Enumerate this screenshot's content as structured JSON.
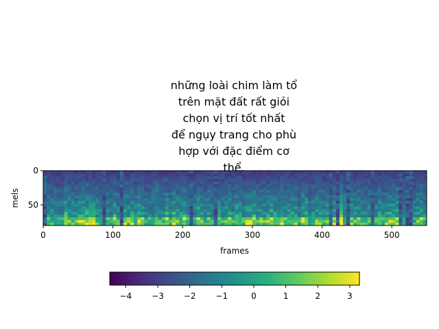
{
  "chart_data": [
    {
      "type": "heatmap",
      "title_lines": [
        "những loài chim làm tổ",
        "trên mặt đất rất giỏi",
        "chọn vị trí tốt nhất",
        "để ngụy trang cho phù",
        "hợp với đặc điểm cơ",
        "thể."
      ],
      "xlabel": "frames",
      "ylabel": "mels",
      "xlim": [
        0,
        550
      ],
      "ylim": [
        80,
        0
      ],
      "x_ticks": [
        0,
        100,
        200,
        300,
        400,
        500
      ],
      "y_ticks": [
        0,
        50
      ],
      "colormap": "viridis",
      "grid": false,
      "colorbar": {
        "orientation": "horizontal",
        "range": [
          -4.5,
          3.3
        ],
        "ticks": [
          -4,
          -3,
          -2,
          -1,
          0,
          1,
          2,
          3
        ],
        "tick_labels": [
          "−4",
          "−3",
          "−2",
          "−1",
          "0",
          "1",
          "2",
          "3"
        ]
      }
    }
  ]
}
